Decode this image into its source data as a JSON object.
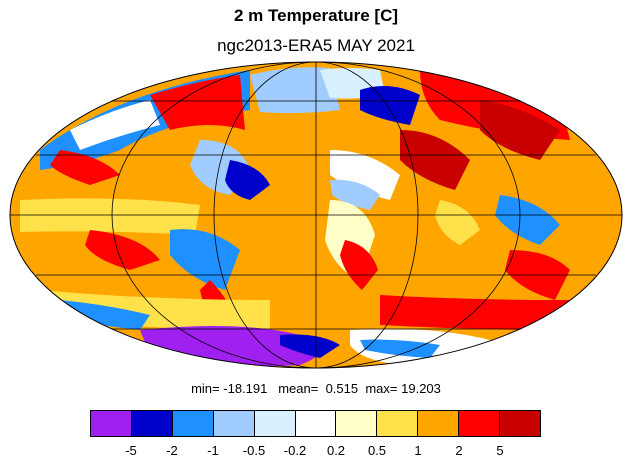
{
  "title": "2 m Temperature [C]",
  "subtitle": "ngc2013-ERA5 MAY 2021",
  "stats": {
    "min_label": "min=",
    "min": "-18.191",
    "mean_label": "mean=",
    "mean": "0.515",
    "max_label": "max=",
    "max": "19.203"
  },
  "map": {
    "projection": "Mollweide",
    "ocean_base_color": "#FFA500"
  },
  "colorbar": {
    "colors": [
      "#A020F0",
      "#0000CD",
      "#1E90FF",
      "#A0CCFF",
      "#D8F0FF",
      "#FFFFFF",
      "#FFFFC8",
      "#FFE14A",
      "#FFA500",
      "#FF0000",
      "#C80000"
    ],
    "tick_labels": [
      "-5",
      "-2",
      "-1",
      "-0.5",
      "-0.2",
      "0.2",
      "0.5",
      "1",
      "2",
      "5"
    ]
  }
}
